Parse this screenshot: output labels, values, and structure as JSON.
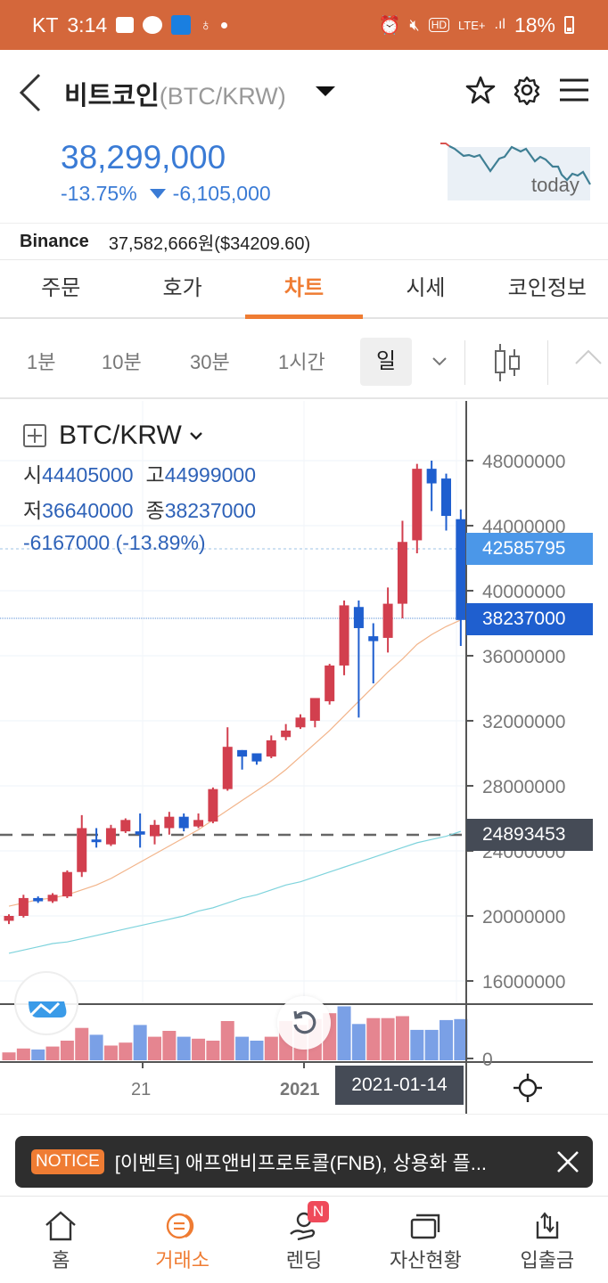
{
  "status_bar": {
    "carrier": "KT",
    "time": "3:14",
    "battery": "18%",
    "network": "LTE+"
  },
  "header": {
    "title": "비트코인",
    "pair": "(BTC/KRW)",
    "icons": [
      "back-icon",
      "dropdown-caret-icon",
      "star-icon",
      "gear-icon",
      "menu-icon"
    ]
  },
  "ticker": {
    "price": "38,299,000",
    "change_pct": "-13.75%",
    "change_abs": "-6,105,000",
    "direction": "down",
    "sparkline_label": "today",
    "color": "#3a7bd5"
  },
  "binance": {
    "exchange": "Binance",
    "price": "37,582,666원($34209.60)"
  },
  "tabs": [
    {
      "label": "주문",
      "active": false
    },
    {
      "label": "호가",
      "active": false
    },
    {
      "label": "차트",
      "active": true
    },
    {
      "label": "시세",
      "active": false
    },
    {
      "label": "코인정보",
      "active": false
    }
  ],
  "periods": [
    {
      "label": "1분",
      "active": false
    },
    {
      "label": "10분",
      "active": false
    },
    {
      "label": "30분",
      "active": false
    },
    {
      "label": "1시간",
      "active": false
    },
    {
      "label": "일",
      "active": true
    }
  ],
  "chart_header": {
    "symbol": "BTC/KRW",
    "open_label": "시",
    "open": "44405000",
    "high_label": "고",
    "high": "44999000",
    "low_label": "저",
    "low": "36640000",
    "close_label": "종",
    "close": "38237000",
    "change": "-6167000 (-13.89%)"
  },
  "price_tags": {
    "crosshair": "42585795",
    "last": "38237000",
    "dashed_level": "24893453"
  },
  "x_axis": {
    "labels": [
      "21",
      "2021"
    ],
    "selected_date": "2021-01-14"
  },
  "notice": {
    "badge": "NOTICE",
    "text": "[이벤트] 애프앤비프로토콜(FNB), 상용화 플..."
  },
  "bottom_nav": [
    {
      "label": "홈",
      "icon": "home-icon",
      "active": false
    },
    {
      "label": "거래소",
      "icon": "exchange-icon",
      "active": true
    },
    {
      "label": "렌딩",
      "icon": "lending-icon",
      "active": false,
      "badge": "N"
    },
    {
      "label": "자산현황",
      "icon": "assets-icon",
      "active": false
    },
    {
      "label": "입출금",
      "icon": "deposit-withdraw-icon",
      "active": false
    }
  ],
  "colors": {
    "accent": "#ef7c33",
    "status_bar": "#d4673b",
    "up": "#d23f4e",
    "down": "#1f5fcf",
    "price_blue": "#3a7bd5"
  },
  "chart_data": {
    "type": "candlestick",
    "title": "BTC/KRW",
    "interval": "1D",
    "ylim": [
      14000000,
      50000000
    ],
    "y_ticks": [
      16000000,
      20000000,
      24000000,
      28000000,
      32000000,
      36000000,
      40000000,
      44000000,
      48000000
    ],
    "x_labels": [
      "21",
      "2021"
    ],
    "candles": [
      {
        "o": 19.7,
        "h": 20.1,
        "l": 19.5,
        "c": 20.0
      },
      {
        "o": 20.0,
        "h": 21.3,
        "l": 19.9,
        "c": 21.1
      },
      {
        "o": 21.1,
        "h": 21.2,
        "l": 20.8,
        "c": 20.9
      },
      {
        "o": 20.9,
        "h": 21.4,
        "l": 20.8,
        "c": 21.3
      },
      {
        "o": 21.2,
        "h": 22.8,
        "l": 21.1,
        "c": 22.7
      },
      {
        "o": 22.7,
        "h": 26.2,
        "l": 22.4,
        "c": 25.4
      },
      {
        "o": 24.7,
        "h": 25.4,
        "l": 24.2,
        "c": 24.6
      },
      {
        "o": 24.4,
        "h": 25.6,
        "l": 24.3,
        "c": 25.4
      },
      {
        "o": 25.2,
        "h": 26.0,
        "l": 25.1,
        "c": 25.9
      },
      {
        "o": 25.2,
        "h": 26.3,
        "l": 24.2,
        "c": 25.0
      },
      {
        "o": 24.9,
        "h": 25.9,
        "l": 24.4,
        "c": 25.6
      },
      {
        "o": 25.4,
        "h": 26.4,
        "l": 25.0,
        "c": 26.1
      },
      {
        "o": 26.1,
        "h": 26.3,
        "l": 25.2,
        "c": 25.4
      },
      {
        "o": 25.5,
        "h": 26.3,
        "l": 25.4,
        "c": 25.9
      },
      {
        "o": 25.8,
        "h": 27.9,
        "l": 25.7,
        "c": 27.8
      },
      {
        "o": 27.8,
        "h": 31.6,
        "l": 27.7,
        "c": 30.4
      },
      {
        "o": 30.2,
        "h": 30.2,
        "l": 29.0,
        "c": 29.8
      },
      {
        "o": 30.0,
        "h": 30.0,
        "l": 29.3,
        "c": 29.5
      },
      {
        "o": 29.8,
        "h": 31.1,
        "l": 29.7,
        "c": 30.8
      },
      {
        "o": 31.0,
        "h": 31.8,
        "l": 30.8,
        "c": 31.4
      },
      {
        "o": 31.6,
        "h": 32.4,
        "l": 31.5,
        "c": 32.2
      },
      {
        "o": 32.0,
        "h": 33.0,
        "l": 31.6,
        "c": 33.4
      },
      {
        "o": 33.2,
        "h": 35.5,
        "l": 33.0,
        "c": 35.4
      },
      {
        "o": 35.4,
        "h": 39.4,
        "l": 34.8,
        "c": 39.1
      },
      {
        "o": 39.0,
        "h": 39.4,
        "l": 32.2,
        "c": 37.7
      },
      {
        "o": 37.2,
        "h": 38.0,
        "l": 34.3,
        "c": 36.9
      },
      {
        "o": 37.1,
        "h": 40.2,
        "l": 36.2,
        "c": 39.2
      },
      {
        "o": 39.2,
        "h": 44.3,
        "l": 38.3,
        "c": 43.0
      },
      {
        "o": 43.1,
        "h": 47.8,
        "l": 42.3,
        "c": 47.5
      },
      {
        "o": 47.5,
        "h": 48.0,
        "l": 44.9,
        "c": 46.6
      },
      {
        "o": 46.9,
        "h": 47.2,
        "l": 43.7,
        "c": 44.6
      },
      {
        "o": 44.4,
        "h": 45.0,
        "l": 36.6,
        "c": 38.2
      }
    ],
    "ma_short": [
      20.6,
      20.8,
      21.0,
      21.1,
      21.3,
      21.6,
      21.9,
      22.3,
      22.8,
      23.3,
      23.8,
      24.3,
      24.8,
      25.3,
      25.9,
      26.5,
      27.1,
      27.7,
      28.3,
      29.0,
      29.8,
      30.6,
      31.4,
      32.3,
      33.2,
      34.1,
      35.0,
      35.8,
      36.7,
      37.3,
      37.8,
      38.2
    ],
    "ma_long": [
      17.7,
      17.9,
      18.1,
      18.3,
      18.4,
      18.6,
      18.8,
      19.0,
      19.2,
      19.4,
      19.6,
      19.8,
      20.0,
      20.3,
      20.5,
      20.8,
      21.1,
      21.3,
      21.6,
      21.9,
      22.1,
      22.4,
      22.7,
      23.0,
      23.3,
      23.6,
      23.9,
      24.2,
      24.5,
      24.7,
      24.9,
      25.2
    ],
    "volume": [
      8,
      12,
      11,
      14,
      20,
      33,
      26,
      15,
      18,
      36,
      24,
      30,
      24,
      22,
      20,
      40,
      24,
      20,
      24,
      40,
      36,
      42,
      48,
      55,
      37,
      43,
      43,
      45,
      31,
      31,
      41,
      42
    ],
    "volume_up": [
      true,
      true,
      false,
      true,
      true,
      true,
      false,
      true,
      true,
      false,
      true,
      true,
      false,
      true,
      true,
      true,
      false,
      false,
      true,
      true,
      true,
      true,
      true,
      false,
      false,
      true,
      true,
      true,
      false,
      false,
      false,
      false
    ],
    "annotations": {
      "crosshair_price": 42585795,
      "last_price": 38237000,
      "dashed_level": 24893453,
      "selected_date": "2021-01-14"
    }
  }
}
